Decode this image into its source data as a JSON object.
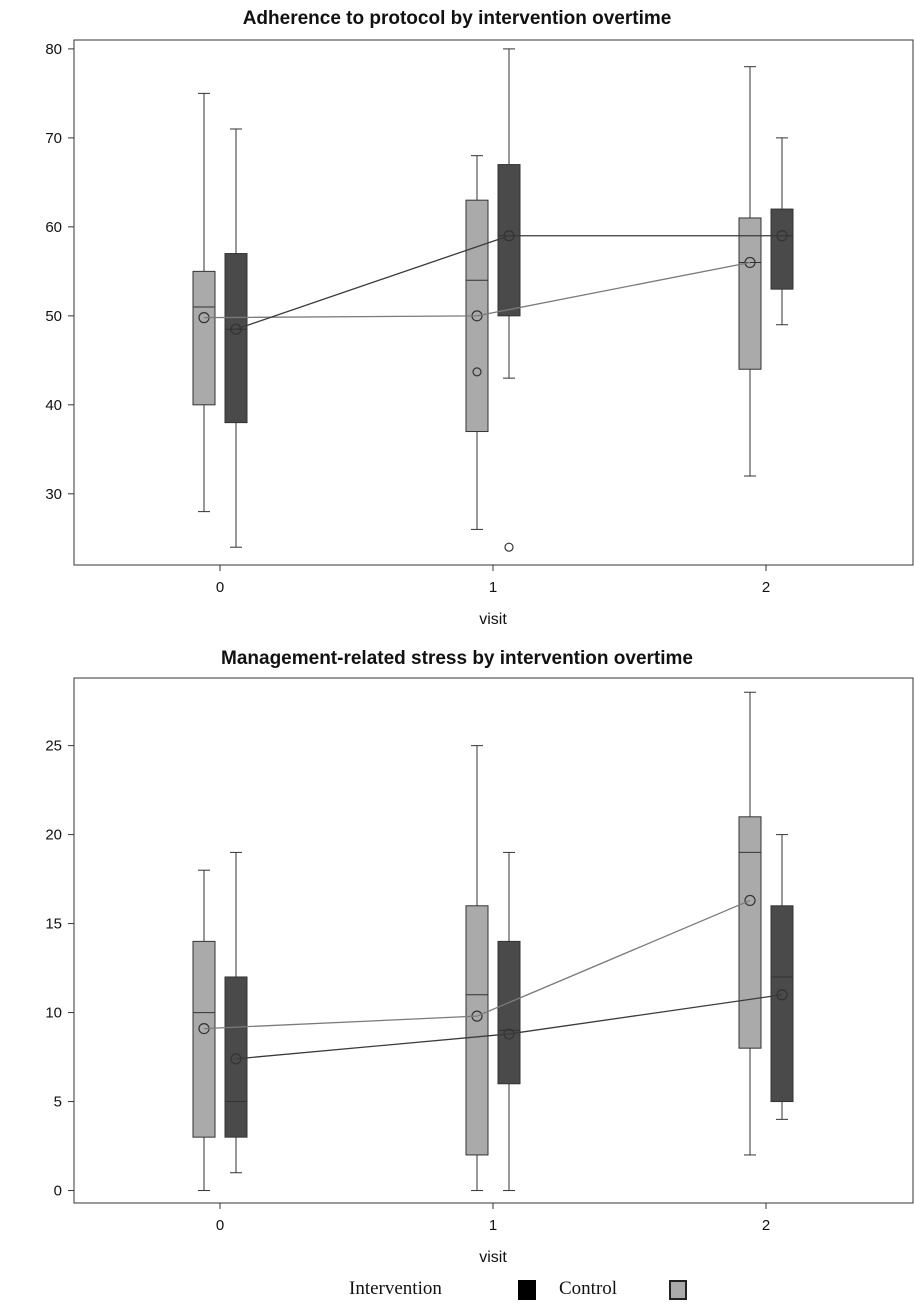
{
  "chart_data": [
    {
      "type": "box",
      "title": "Adherence to protocol by intervention overtime",
      "xlabel": "visit",
      "ylabel": "",
      "categories": [
        "0",
        "1",
        "2"
      ],
      "ylim": [
        22,
        81
      ],
      "yticks": [
        "30",
        "40",
        "50",
        "60",
        "70",
        "80"
      ],
      "series": [
        {
          "name": "Control",
          "color": "#aaaaaa",
          "boxes": [
            {
              "visit": 0,
              "min": 28,
              "q1": 40,
              "median": 51,
              "q3": 55,
              "max": 75,
              "mean": 49.8
            },
            {
              "visit": 1,
              "min": 26,
              "q1": 37,
              "median": 54,
              "q3": 63,
              "max": 68,
              "mean": 50,
              "outliers": [
                43.7
              ]
            },
            {
              "visit": 2,
              "min": 32,
              "q1": 44,
              "median": 56,
              "q3": 61,
              "max": 78,
              "mean": 56
            }
          ]
        },
        {
          "name": "Intervention",
          "color": "#4a4a4a",
          "boxes": [
            {
              "visit": 0,
              "min": 24,
              "q1": 38,
              "median": 48.5,
              "q3": 57,
              "max": 71,
              "mean": 48.5
            },
            {
              "visit": 1,
              "min": 43,
              "q1": 50,
              "median": 59,
              "q3": 67,
              "max": 80,
              "mean": 59,
              "outliers": [
                24
              ]
            },
            {
              "visit": 2,
              "min": 49,
              "q1": 53,
              "median": 59,
              "q3": 62,
              "max": 70,
              "mean": 59
            }
          ]
        }
      ]
    },
    {
      "type": "box",
      "title": "Management-related stress by intervention overtime",
      "xlabel": "visit",
      "ylabel": "",
      "categories": [
        "0",
        "1",
        "2"
      ],
      "ylim": [
        -0.7,
        28.8
      ],
      "yticks": [
        "0",
        "5",
        "10",
        "15",
        "20",
        "25"
      ],
      "series": [
        {
          "name": "Control",
          "color": "#aaaaaa",
          "boxes": [
            {
              "visit": 0,
              "min": 0,
              "q1": 3,
              "median": 10,
              "q3": 14,
              "max": 18,
              "mean": 9.1
            },
            {
              "visit": 1,
              "min": 0,
              "q1": 2,
              "median": 11,
              "q3": 16,
              "max": 25,
              "mean": 9.8
            },
            {
              "visit": 2,
              "min": 2,
              "q1": 8,
              "median": 19,
              "q3": 21,
              "max": 28,
              "mean": 16.3
            }
          ]
        },
        {
          "name": "Intervention",
          "color": "#4a4a4a",
          "boxes": [
            {
              "visit": 0,
              "min": 1,
              "q1": 3,
              "median": 5,
              "q3": 12,
              "max": 19,
              "mean": 7.4
            },
            {
              "visit": 1,
              "min": 0,
              "q1": 6,
              "median": 9,
              "q3": 14,
              "max": 19,
              "mean": 8.8
            },
            {
              "visit": 2,
              "min": 4,
              "q1": 5,
              "median": 12,
              "q3": 16,
              "max": 20,
              "mean": 11
            }
          ]
        }
      ]
    }
  ],
  "legend": {
    "intervention_label": "Intervention",
    "control_label": "Control",
    "intervention_color": "#000000",
    "control_color": "#aaaaaa"
  }
}
